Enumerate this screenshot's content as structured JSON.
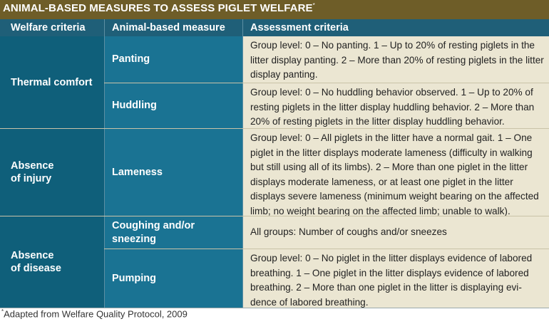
{
  "title": "ANIMAL-BASED MEASURES TO ASSESS PIGLET WELFARE",
  "title_marker": "*",
  "headers": {
    "criteria": "Welfare criteria",
    "measure": "Animal-based measure",
    "assessment": "Assessment criteria"
  },
  "groups": [
    {
      "criteria": "Thermal comfort"
    },
    {
      "criteria_line1": "Absence",
      "criteria_line2": "of injury"
    },
    {
      "criteria_line1": "Absence",
      "criteria_line2": "of disease"
    }
  ],
  "rows": [
    {
      "measure": "Panting",
      "assessment": "Group level: 0 – No panting. 1 – Up to 20% of resting piglets in the litter display panting. 2 – More than 20% of resting piglets in the litter display panting."
    },
    {
      "measure": "Huddling",
      "assessment": "Group level: 0 – No huddling behavior observed. 1 – Up to 20% of resting piglets in the litter display huddling behavior. 2 – More than 20% of resting piglets in the litter display huddling behavior."
    },
    {
      "measure": "Lameness",
      "assessment": "Group level: 0 – All piglets in the litter have a normal gait. 1 – One piglet in the litter displays moderate lameness (difficulty in walking but still using all of its limbs). 2 – More than one piglet in the litter displays moderate lameness, or at least one piglet in the litter displays severe lameness (minimum weight bearing on the affected limb; no weight bearing on the affected limb; unable to walk)."
    },
    {
      "measure_line1": "Coughing and/or",
      "measure_line2": "sneezing",
      "assessment": "All groups: Number of coughs and/or sneezes"
    },
    {
      "measure": "Pumping",
      "assessment": "Group level: 0 – No piglet in the litter displays evidence of labored breathing. 1 – One piglet in the litter displays evidence of labored breathing. 2 – More than one piglet in the litter is displaying evi-dence of labored breathing."
    }
  ],
  "footnote": {
    "marker": "*",
    "text": "Adapted from Welfare Quality Protocol, 2009"
  }
}
